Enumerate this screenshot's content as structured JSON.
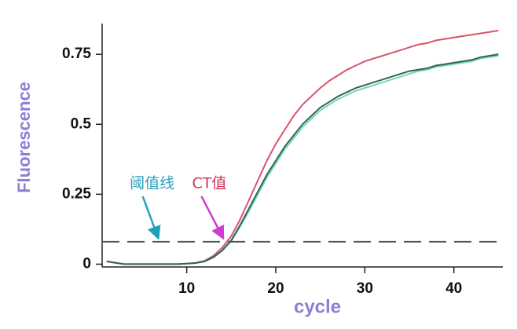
{
  "chart_data": {
    "type": "line",
    "x_label": "cycle",
    "y_label": "Fluorescence",
    "x": [
      1,
      2,
      3,
      4,
      5,
      6,
      7,
      8,
      9,
      10,
      11,
      12,
      13,
      14,
      15,
      16,
      17,
      18,
      19,
      20,
      21,
      22,
      23,
      24,
      25,
      26,
      27,
      28,
      29,
      30,
      31,
      32,
      33,
      34,
      35,
      36,
      37,
      38,
      39,
      40,
      41,
      42,
      43,
      44,
      45
    ],
    "series": [
      {
        "color": "#d9546a",
        "values": [
          0.01,
          0.005,
          0,
          0,
          0,
          0,
          0,
          0,
          0,
          0.002,
          0.005,
          0.012,
          0.03,
          0.06,
          0.1,
          0.16,
          0.23,
          0.3,
          0.37,
          0.43,
          0.48,
          0.53,
          0.57,
          0.6,
          0.63,
          0.655,
          0.675,
          0.695,
          0.71,
          0.725,
          0.735,
          0.745,
          0.755,
          0.765,
          0.775,
          0.785,
          0.79,
          0.8,
          0.805,
          0.81,
          0.815,
          0.82,
          0.825,
          0.83,
          0.835
        ]
      },
      {
        "color": "#7fd3b4",
        "values": [
          0.01,
          0.005,
          0,
          0,
          0,
          0,
          0,
          0,
          0,
          0.002,
          0.004,
          0.01,
          0.024,
          0.048,
          0.082,
          0.135,
          0.19,
          0.25,
          0.31,
          0.36,
          0.41,
          0.45,
          0.49,
          0.52,
          0.55,
          0.57,
          0.59,
          0.605,
          0.62,
          0.63,
          0.64,
          0.65,
          0.66,
          0.67,
          0.68,
          0.69,
          0.695,
          0.705,
          0.71,
          0.715,
          0.72,
          0.725,
          0.735,
          0.74,
          0.745
        ]
      },
      {
        "color": "#2d6660",
        "values": [
          0.01,
          0.005,
          0,
          0,
          0,
          0,
          0,
          0,
          0,
          0.002,
          0.004,
          0.01,
          0.025,
          0.05,
          0.085,
          0.14,
          0.2,
          0.26,
          0.32,
          0.37,
          0.42,
          0.46,
          0.5,
          0.53,
          0.56,
          0.58,
          0.6,
          0.615,
          0.63,
          0.64,
          0.65,
          0.66,
          0.67,
          0.68,
          0.69,
          0.695,
          0.7,
          0.71,
          0.715,
          0.72,
          0.725,
          0.73,
          0.74,
          0.745,
          0.75
        ]
      }
    ],
    "threshold": 0.08,
    "threshold_color": "#555555",
    "annotations": [
      {
        "text": "阈值线",
        "color": "#2a9fbf",
        "x": 7,
        "y": 0.08
      },
      {
        "text": "CT值",
        "color": "#d0345a",
        "arrow_color": "#d23ad6",
        "x": 14.3,
        "y": 0.08
      }
    ],
    "xlim": [
      0.5,
      45.5
    ],
    "ylim": [
      -0.01,
      0.86
    ],
    "xticks": [
      10,
      20,
      30,
      40
    ],
    "yticks": [
      0,
      0.25,
      0.5,
      0.75
    ]
  }
}
